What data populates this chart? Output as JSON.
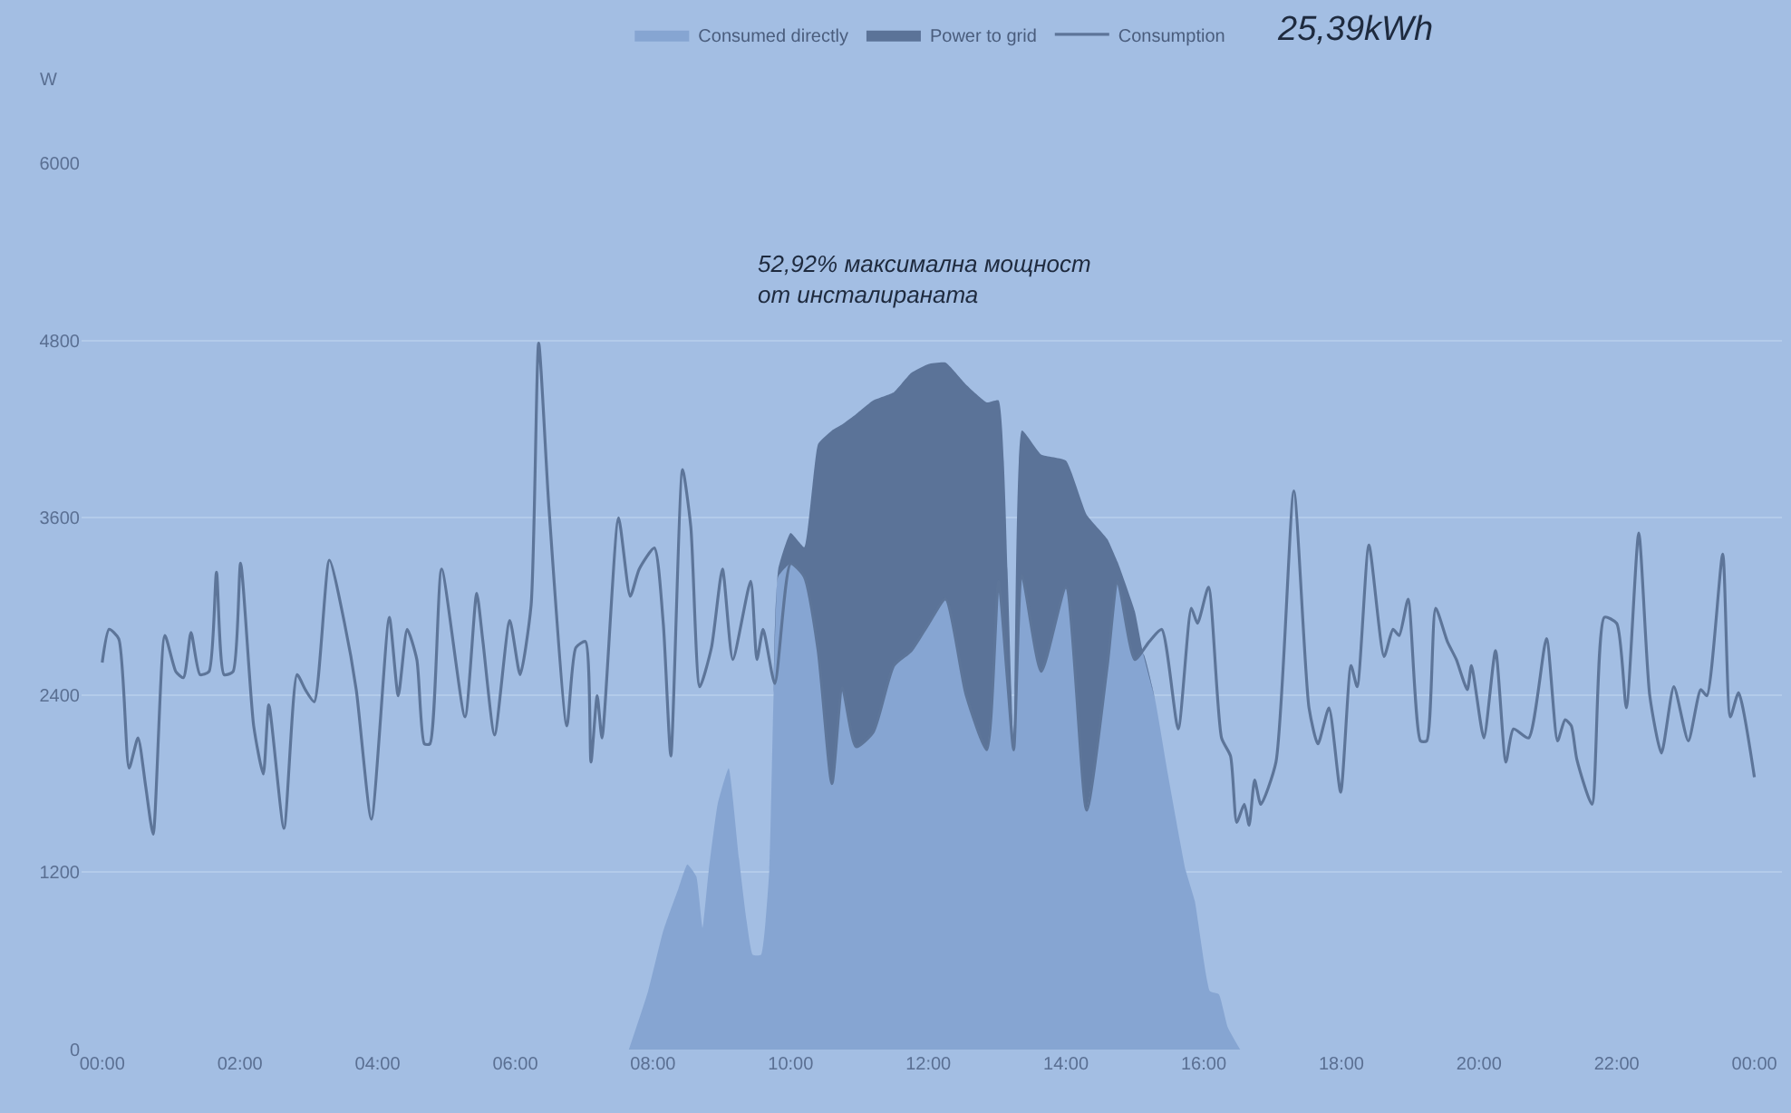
{
  "chart_data": {
    "type": "area",
    "ylabel": "W",
    "legend": "top",
    "grid": "y",
    "stacked": true,
    "annotations": [
      "25,39kWh",
      "52,92% максимална мощност\nот инсталираната"
    ],
    "xlim": [
      -0.3,
      24.4
    ],
    "ylim": [
      0,
      6000
    ],
    "xticks": [
      {
        "value": 0,
        "label": "00:00"
      },
      {
        "value": 2,
        "label": "02:00"
      },
      {
        "value": 4,
        "label": "04:00"
      },
      {
        "value": 6,
        "label": "06:00"
      },
      {
        "value": 8,
        "label": "08:00"
      },
      {
        "value": 10,
        "label": "10:00"
      },
      {
        "value": 12,
        "label": "12:00"
      },
      {
        "value": 14,
        "label": "14:00"
      },
      {
        "value": 16,
        "label": "16:00"
      },
      {
        "value": 18,
        "label": "18:00"
      },
      {
        "value": 20,
        "label": "20:00"
      },
      {
        "value": 22,
        "label": "22:00"
      },
      {
        "value": 24,
        "label": "00:00"
      }
    ],
    "yticks": [
      0,
      1200,
      2400,
      3600,
      4800,
      6000
    ],
    "x": [
      7.65,
      7.93,
      8.15,
      8.37,
      8.5,
      8.63,
      8.72,
      8.81,
      8.94,
      9.1,
      9.25,
      9.45,
      9.57,
      9.69,
      9.75,
      9.82,
      10.0,
      10.2,
      10.4,
      10.6,
      10.75,
      10.95,
      11.2,
      11.5,
      11.75,
      12.0,
      12.25,
      12.55,
      12.85,
      13.02,
      13.15,
      13.24,
      13.36,
      13.64,
      14.0,
      14.3,
      14.6,
      14.75,
      15.0,
      15.12,
      15.3,
      15.48,
      15.74,
      15.87,
      16.09,
      16.22,
      16.35,
      16.53
    ],
    "series": [
      {
        "name": "Consumed directly",
        "color": "#86a5d2",
        "values": [
          0,
          396,
          804,
          1089,
          1253,
          1171,
          824,
          1212,
          1661,
          1905,
          1293,
          641,
          641,
          1212,
          2354,
          3200,
          3290,
          3200,
          2700,
          1800,
          2450,
          2050,
          2150,
          2600,
          2700,
          2880,
          3050,
          2400,
          2030,
          3170,
          2500,
          2028,
          3210,
          2560,
          3130,
          1620,
          2600,
          3170,
          2640,
          2681,
          2354,
          1864,
          1212,
          1008,
          396,
          375,
          151,
          0
        ]
      },
      {
        "name": "Power to grid",
        "color": "#5b7398",
        "values": [
          0,
          0,
          0,
          0,
          0,
          0,
          0,
          0,
          0,
          0,
          0,
          0,
          0,
          0,
          0,
          52,
          207,
          200,
          1400,
          2390,
          1781,
          2250,
          2244,
          1850,
          1880,
          1760,
          1600,
          2100,
          2350,
          1224,
          752,
          0,
          980,
          1467,
          856,
          2000,
          856,
          130,
          326,
          0,
          0,
          0,
          0,
          0,
          0,
          0,
          0,
          0
        ]
      },
      {
        "name": "Consumption",
        "type": "line",
        "color": "#5d7599",
        "x": [
          0,
          0.1,
          0.24,
          0.39,
          0.52,
          0.63,
          0.74,
          0.91,
          1.07,
          1.18,
          1.29,
          1.42,
          1.55,
          1.66,
          1.77,
          1.9,
          2.01,
          2.2,
          2.34,
          2.42,
          2.64,
          2.83,
          2.95,
          3.08,
          3.3,
          3.52,
          3.69,
          3.91,
          4.17,
          4.3,
          4.43,
          4.57,
          4.68,
          4.76,
          4.93,
          5.27,
          5.44,
          5.53,
          5.7,
          5.92,
          6.07,
          6.23,
          6.34,
          6.49,
          6.75,
          6.88,
          7.02,
          7.1,
          7.19,
          7.26,
          7.5,
          7.67,
          7.8,
          8.02,
          8.15,
          8.26,
          8.43,
          8.55,
          8.68,
          8.85,
          9.01,
          9.16,
          9.42,
          9.51,
          9.6,
          9.77,
          10.0,
          10.2,
          10.4,
          10.6,
          10.75,
          10.95,
          11.2,
          11.5,
          11.75,
          12.0,
          12.25,
          12.55,
          12.85,
          13.02,
          13.15,
          13.24,
          13.36,
          13.64,
          14.0,
          14.3,
          14.6,
          14.75,
          15.0,
          15.21,
          15.39,
          15.63,
          15.82,
          15.91,
          16.07,
          16.26,
          16.39,
          16.48,
          16.59,
          16.66,
          16.74,
          16.83,
          17.05,
          17.31,
          17.53,
          17.66,
          17.82,
          17.99,
          18.14,
          18.23,
          18.4,
          18.62,
          18.75,
          18.84,
          18.97,
          19.15,
          19.24,
          19.37,
          19.54,
          19.67,
          19.83,
          19.89,
          20.07,
          20.24,
          20.39,
          20.5,
          20.72,
          20.98,
          21.14,
          21.25,
          21.34,
          21.42,
          21.64,
          21.82,
          22.0,
          22.14,
          22.32,
          22.48,
          22.65,
          22.83,
          23.04,
          23.22,
          23.31,
          23.54,
          23.65,
          23.77,
          24.0
        ],
        "values": [
          2620,
          2845,
          2780,
          1905,
          2110,
          1785,
          1457,
          2803,
          2558,
          2517,
          2823,
          2538,
          2558,
          3231,
          2538,
          2558,
          3292,
          2191,
          1865,
          2334,
          1497,
          2538,
          2436,
          2354,
          3313,
          2885,
          2436,
          1559,
          2926,
          2395,
          2844,
          2640,
          2069,
          2069,
          3252,
          2252,
          3089,
          2762,
          2130,
          2905,
          2538,
          3007,
          4782,
          3660,
          2191,
          2721,
          2762,
          1946,
          2395,
          2109,
          3599,
          3068,
          3252,
          3395,
          2885,
          1987,
          3925,
          3537,
          2456,
          2721,
          3252,
          2640,
          3170,
          2640,
          2844,
          2477,
          3290,
          3200,
          2700,
          1800,
          2450,
          2050,
          2150,
          2600,
          2700,
          2880,
          3050,
          2400,
          2030,
          3170,
          2500,
          2028,
          3210,
          2560,
          3130,
          1620,
          2600,
          3170,
          2640,
          2762,
          2844,
          2170,
          2987,
          2885,
          3130,
          2109,
          1987,
          1538,
          1660,
          1518,
          1824,
          1660,
          1946,
          3782,
          2313,
          2069,
          2313,
          1742,
          2599,
          2456,
          3415,
          2660,
          2844,
          2803,
          3048,
          2089,
          2089,
          2987,
          2762,
          2640,
          2436,
          2599,
          2109,
          2701,
          1946,
          2170,
          2109,
          2782,
          2089,
          2232,
          2191,
          1966,
          1660,
          2926,
          2885,
          2313,
          3497,
          2395,
          2007,
          2456,
          2089,
          2436,
          2395,
          3354,
          2252,
          2415,
          1844
        ]
      }
    ]
  }
}
